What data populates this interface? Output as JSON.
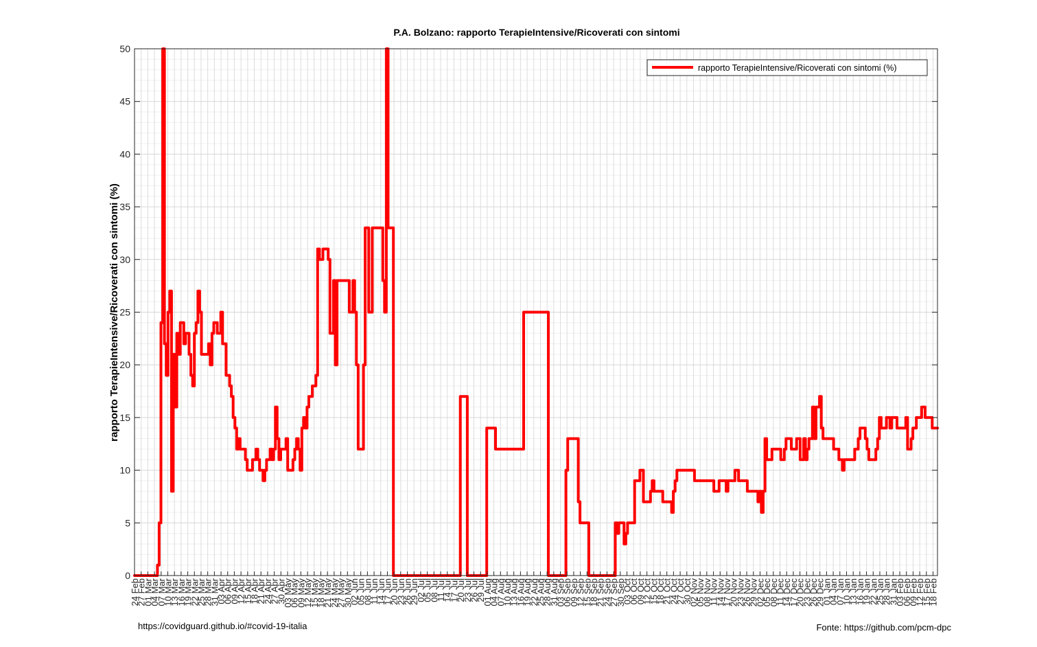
{
  "footer": {
    "left": "https://covidguard.github.io/#covid-19-italia",
    "right": "Fonte: https://github.com/pcm-dpc"
  },
  "chart_data": {
    "type": "line",
    "title": "P.A. Bolzano: rapporto TerapieIntensive/Ricoverati con sintomi",
    "xlabel": "",
    "ylabel": "rapporto TerapieIntensive/Ricoverati con sintomi (%)",
    "ylim": [
      0,
      50
    ],
    "yticks": [
      0,
      5,
      10,
      15,
      20,
      25,
      30,
      35,
      40,
      45,
      50
    ],
    "grid": true,
    "legend_position": "top-right",
    "x_start": "2020-02-24",
    "x_end": "2021-02-20",
    "xtick_labels": [
      "24 Feb",
      "27 Feb",
      "01 Mar",
      "04 Mar",
      "07 Mar",
      "10 Mar",
      "13 Mar",
      "16 Mar",
      "19 Mar",
      "22 Mar",
      "25 Mar",
      "28 Mar",
      "31 Mar",
      "03 Apr",
      "06 Apr",
      "09 Apr",
      "12 Apr",
      "15 Apr",
      "18 Apr",
      "21 Apr",
      "24 Apr",
      "27 Apr",
      "30 Apr",
      "03 May",
      "06 May",
      "09 May",
      "12 May",
      "15 May",
      "18 May",
      "21 May",
      "24 May",
      "27 May",
      "30 May",
      "02 Jun",
      "05 Jun",
      "08 Jun",
      "11 Jun",
      "14 Jun",
      "17 Jun",
      "20 Jun",
      "23 Jun",
      "26 Jun",
      "29 Jun",
      "02 Jul",
      "05 Jul",
      "08 Jul",
      "11 Jul",
      "14 Jul",
      "17 Jul",
      "20 Jul",
      "23 Jul",
      "26 Jul",
      "29 Jul",
      "01 Aug",
      "04 Aug",
      "07 Aug",
      "10 Aug",
      "13 Aug",
      "16 Aug",
      "19 Aug",
      "22 Aug",
      "25 Aug",
      "28 Aug",
      "31 Aug",
      "03 Sep",
      "06 Sep",
      "09 Sep",
      "12 Sep",
      "15 Sep",
      "18 Sep",
      "21 Sep",
      "24 Sep",
      "27 Sep",
      "30 Sep",
      "03 Oct",
      "06 Oct",
      "09 Oct",
      "12 Oct",
      "15 Oct",
      "18 Oct",
      "21 Oct",
      "24 Oct",
      "27 Oct",
      "30 Oct",
      "02 Nov",
      "05 Nov",
      "08 Nov",
      "11 Nov",
      "14 Nov",
      "17 Nov",
      "20 Nov",
      "23 Nov",
      "26 Nov",
      "29 Nov",
      "02 Dec",
      "05 Dec",
      "08 Dec",
      "11 Dec",
      "14 Dec",
      "17 Dec",
      "20 Dec",
      "23 Dec",
      "26 Dec",
      "29 Dec",
      "01 Jan",
      "04 Jan",
      "07 Jan",
      "10 Jan",
      "13 Jan",
      "16 Jan",
      "19 Jan",
      "22 Jan",
      "25 Jan",
      "28 Jan",
      "31 Jan",
      "03 Feb",
      "06 Feb",
      "09 Feb",
      "12 Feb",
      "15 Feb",
      "18 Feb"
    ],
    "series": [
      {
        "name": "rapporto TerapieIntensive/Ricoverati con sintomi (%)",
        "color": "#ff0000",
        "values": [
          0,
          0,
          0,
          0,
          0,
          0,
          0,
          0,
          0,
          0,
          0,
          0,
          0,
          1,
          5,
          24,
          50,
          22,
          19,
          25,
          27,
          8,
          21,
          16,
          23,
          21,
          24,
          24,
          22,
          23,
          23,
          21,
          19,
          18,
          23,
          24,
          27,
          25,
          21,
          21,
          21,
          21,
          22,
          20,
          23,
          24,
          24,
          23,
          23,
          25,
          22,
          22,
          19,
          19,
          18,
          17,
          15,
          14,
          12,
          13,
          12,
          12,
          12,
          11,
          10,
          10,
          10,
          11,
          11,
          12,
          11,
          10,
          10,
          9,
          10,
          11,
          11,
          12,
          11,
          12,
          16,
          13,
          11,
          12,
          12,
          12,
          13,
          10,
          10,
          10,
          11,
          12,
          13,
          12,
          10,
          14,
          15,
          14,
          16,
          17,
          17,
          18,
          18,
          19,
          31,
          30,
          30,
          31,
          31,
          31,
          30,
          23,
          23,
          28,
          20,
          28,
          28,
          28,
          28,
          28,
          28,
          28,
          25,
          25,
          28,
          25,
          20,
          12,
          12,
          12,
          20,
          33,
          33,
          25,
          25,
          33,
          33,
          33,
          33,
          33,
          33,
          28,
          25,
          50,
          33,
          33,
          33,
          0,
          0,
          0,
          0,
          0,
          0,
          0,
          0,
          0,
          0,
          0,
          0,
          0,
          0,
          0,
          0,
          0,
          0,
          0,
          0,
          0,
          0,
          0,
          0,
          0,
          0,
          0,
          0,
          0,
          0,
          0,
          0,
          0,
          0,
          0,
          0,
          0,
          0,
          17,
          17,
          17,
          17,
          0,
          0,
          0,
          0,
          0,
          0,
          0,
          0,
          0,
          0,
          0,
          14,
          14,
          14,
          14,
          14,
          12,
          12,
          12,
          12,
          12,
          12,
          12,
          12,
          12,
          12,
          12,
          12,
          12,
          12,
          12,
          12,
          25,
          25,
          25,
          25,
          25,
          25,
          25,
          25,
          25,
          25,
          25,
          25,
          25,
          25,
          0,
          0,
          0,
          0,
          0,
          0,
          0,
          0,
          0,
          0,
          10,
          13,
          13,
          13,
          13,
          13,
          13,
          7,
          5,
          5,
          5,
          5,
          5,
          0,
          0,
          0,
          0,
          0,
          0,
          0,
          0,
          0,
          0,
          0,
          0,
          0,
          0,
          0,
          5,
          4,
          5,
          5,
          5,
          3,
          4,
          5,
          5,
          5,
          5,
          9,
          9,
          9,
          10,
          10,
          7,
          7,
          7,
          7,
          8,
          9,
          8,
          8,
          8,
          8,
          8,
          7,
          7,
          7,
          7,
          7,
          6,
          8,
          9,
          10,
          10,
          10,
          10,
          10,
          10,
          10,
          10,
          10,
          10,
          9,
          9,
          9,
          9,
          9,
          9,
          9,
          9,
          9,
          9,
          9,
          8,
          8,
          8,
          9,
          9,
          9,
          9,
          8,
          9,
          9,
          9,
          9,
          10,
          10,
          9,
          9,
          9,
          9,
          9,
          8,
          8,
          8,
          8,
          8,
          8,
          7,
          8,
          6,
          8,
          13,
          11,
          11,
          11,
          12,
          12,
          12,
          12,
          12,
          11,
          11,
          12,
          13,
          13,
          13,
          12,
          12,
          12,
          13,
          13,
          11,
          11,
          13,
          11,
          12,
          13,
          13,
          16,
          13,
          16,
          16,
          17,
          14,
          13,
          13,
          13,
          13,
          13,
          13,
          12,
          12,
          12,
          11,
          11,
          10,
          11,
          11,
          11,
          11,
          11,
          11,
          12,
          12,
          13,
          14,
          14,
          14,
          13,
          12,
          11,
          11,
          11,
          11,
          12,
          13,
          15,
          14,
          14,
          14,
          15,
          15,
          14,
          15,
          15,
          15,
          14,
          14,
          14,
          14,
          14,
          15,
          12,
          12,
          13,
          14,
          14,
          15,
          15,
          15,
          16,
          16,
          15,
          15,
          15,
          15,
          14,
          14,
          14
        ]
      }
    ]
  }
}
